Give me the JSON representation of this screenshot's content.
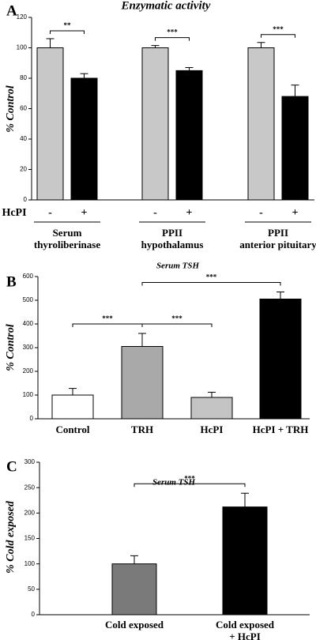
{
  "chart_data": [
    {
      "type": "bar",
      "panel": "A",
      "title": "Enzymatic activity",
      "y_label": "% Control",
      "categories": [
        [
          "Serum",
          "thyroliberinase"
        ],
        [
          "PPII",
          "hypothalamus"
        ],
        [
          "PPII",
          "anterior pituitary"
        ]
      ],
      "legend_title": "HcPI",
      "series": [
        {
          "name": "-",
          "color": "#c8c8c8",
          "values": [
            100,
            100,
            100
          ],
          "errors": [
            6,
            1.5,
            3.5
          ]
        },
        {
          "name": "+",
          "color": "#000000",
          "values": [
            80,
            85,
            68
          ],
          "errors": [
            3,
            2,
            7.5
          ]
        }
      ],
      "annotations": [
        "**",
        "***",
        "***"
      ],
      "ylim": [
        0,
        120
      ],
      "yticks": [
        0,
        20,
        40,
        60,
        80,
        100,
        120
      ]
    },
    {
      "type": "bar",
      "panel": "B",
      "title": "Serum TSH",
      "y_label": "% Control",
      "categories": [
        "Control",
        "TRH",
        "HcPI",
        "HcPI + TRH"
      ],
      "values": [
        100,
        305,
        90,
        505
      ],
      "errors": [
        28,
        55,
        22,
        30
      ],
      "colors": [
        "#ffffff",
        "#a9a9a9",
        "#c4c4c4",
        "#000000"
      ],
      "annotations": [
        {
          "text": "***",
          "pair": [
            "Control",
            "TRH"
          ]
        },
        {
          "text": "***",
          "pair": [
            "TRH",
            "HcPI"
          ]
        },
        {
          "text": "***",
          "pair": [
            "TRH",
            "HcPI + TRH"
          ]
        }
      ],
      "ylim": [
        0,
        600
      ],
      "yticks": [
        0,
        100,
        200,
        300,
        400,
        500,
        600
      ]
    },
    {
      "type": "bar",
      "panel": "C",
      "title": "Serum TSH",
      "y_label": "% Cold exposed",
      "categories": [
        [
          "Cold exposed"
        ],
        [
          "Cold exposed",
          "+ HcPI"
        ]
      ],
      "values": [
        100,
        212
      ],
      "errors": [
        16,
        27
      ],
      "colors": [
        "#7a7a7a",
        "#000000"
      ],
      "annotations": [
        {
          "text": "***",
          "pair": [
            "Cold exposed",
            "Cold exposed + HcPI"
          ]
        }
      ],
      "ylim": [
        0,
        300
      ],
      "yticks": [
        0,
        50,
        100,
        150,
        200,
        250,
        300
      ]
    }
  ]
}
